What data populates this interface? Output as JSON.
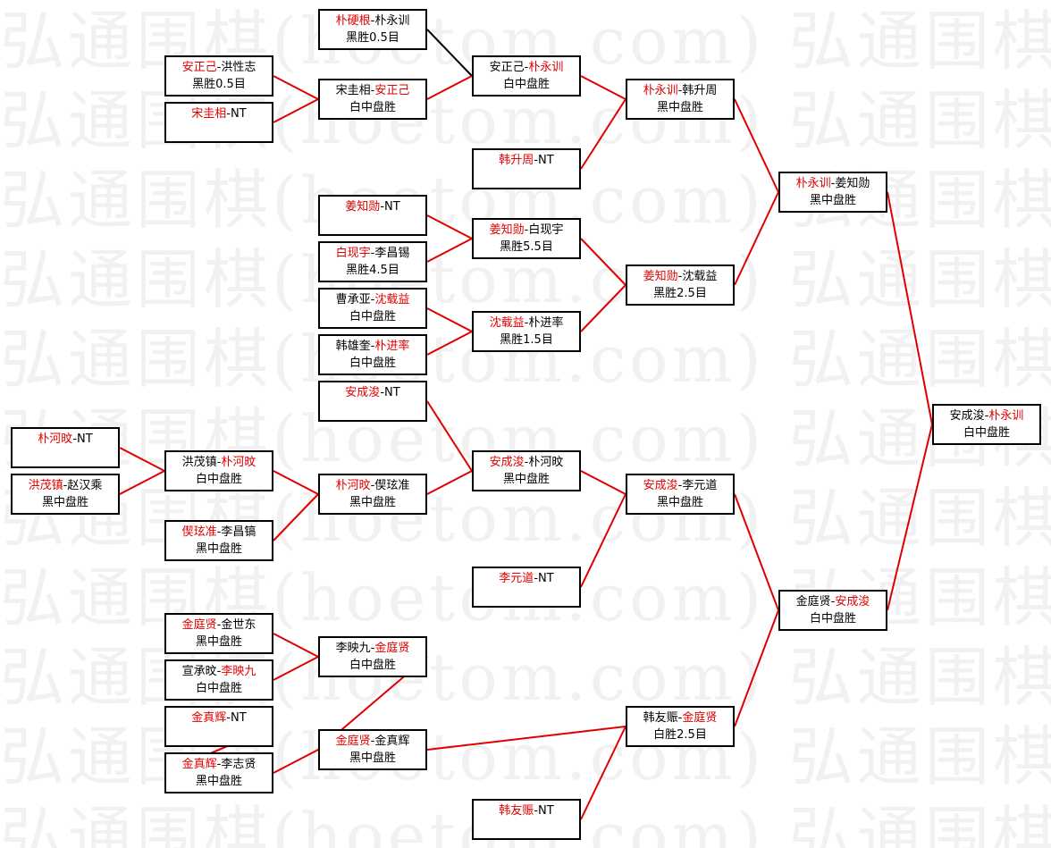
{
  "watermark": "弘通围棋(hoetom.com) 弘通围棋(hoetom.com)",
  "colors": {
    "winner": "#e00000",
    "text": "#000000",
    "link_red": "#e00000",
    "link_black": "#000000",
    "watermark": "#f1f1f1"
  },
  "separator": "-",
  "matches": [
    {
      "id": "m0",
      "players": [
        "朴硬根",
        "朴永训"
      ],
      "winner": 0,
      "result": "黑胜0.5目",
      "next": "m4",
      "link": "black"
    },
    {
      "id": "m1",
      "players": [
        "安正己",
        "洪性志"
      ],
      "winner": 0,
      "result": "黑胜0.5目",
      "next": "m3",
      "link": "red"
    },
    {
      "id": "m2",
      "players": [
        "宋圭相",
        "NT"
      ],
      "winner": 0,
      "result": "",
      "next": "m3",
      "link": "red"
    },
    {
      "id": "m3",
      "players": [
        "宋圭相",
        "安正己"
      ],
      "winner": 1,
      "result": "白中盘胜",
      "next": "m4",
      "link": "red"
    },
    {
      "id": "m4",
      "players": [
        "安正己",
        "朴永训"
      ],
      "winner": 1,
      "result": "白中盘胜",
      "next": "m6",
      "link": "red"
    },
    {
      "id": "m5",
      "players": [
        "韩升周",
        "NT"
      ],
      "winner": 0,
      "result": "",
      "next": "m6",
      "link": "red"
    },
    {
      "id": "m6",
      "players": [
        "朴永训",
        "韩升周"
      ],
      "winner": 0,
      "result": "黑中盘胜",
      "next": "m14",
      "link": "red"
    },
    {
      "id": "m7",
      "players": [
        "姜知勋",
        "NT"
      ],
      "winner": 0,
      "result": "",
      "next": "m9",
      "link": "red"
    },
    {
      "id": "m8",
      "players": [
        "白现宇",
        "李昌锡"
      ],
      "winner": 0,
      "result": "黑胜4.5目",
      "next": "m9",
      "link": "red"
    },
    {
      "id": "m9",
      "players": [
        "姜知勋",
        "白现宇"
      ],
      "winner": 0,
      "result": "黑胜5.5目",
      "next": "m13",
      "link": "red"
    },
    {
      "id": "m10",
      "players": [
        "曹承亚",
        "沈载益"
      ],
      "winner": 1,
      "result": "白中盘胜",
      "next": "m12",
      "link": "red"
    },
    {
      "id": "m11",
      "players": [
        "韩雄奎",
        "朴进率"
      ],
      "winner": 1,
      "result": "白中盘胜",
      "next": "m12",
      "link": "red"
    },
    {
      "id": "m12",
      "players": [
        "沈载益",
        "朴进率"
      ],
      "winner": 0,
      "result": "黑胜1.5目",
      "next": "m13",
      "link": "red"
    },
    {
      "id": "m13",
      "players": [
        "姜知勋",
        "沈载益"
      ],
      "winner": 0,
      "result": "黑胜2.5目",
      "next": "m14",
      "link": "red"
    },
    {
      "id": "m14",
      "players": [
        "朴永训",
        "姜知勋"
      ],
      "winner": 0,
      "result": "黑中盘胜",
      "next": "m33",
      "link": "red"
    },
    {
      "id": "m15",
      "players": [
        "安成浚",
        "NT"
      ],
      "winner": 0,
      "result": "",
      "next": "m21",
      "link": "red"
    },
    {
      "id": "m16",
      "players": [
        "朴河旼",
        "NT"
      ],
      "winner": 0,
      "result": "",
      "next": "m18",
      "link": "red"
    },
    {
      "id": "m17",
      "players": [
        "洪茂镇",
        "赵汉乘"
      ],
      "winner": 0,
      "result": "黑中盘胜",
      "next": "m18",
      "link": "red"
    },
    {
      "id": "m18",
      "players": [
        "洪茂镇",
        "朴河旼"
      ],
      "winner": 1,
      "result": "白中盘胜",
      "next": "m20",
      "link": "red"
    },
    {
      "id": "m19",
      "players": [
        "偰玹准",
        "李昌镐"
      ],
      "winner": 0,
      "result": "黑中盘胜",
      "next": "m20",
      "link": "red"
    },
    {
      "id": "m20",
      "players": [
        "朴河旼",
        "偰玹准"
      ],
      "winner": 0,
      "result": "黑中盘胜",
      "next": "m21",
      "link": "red"
    },
    {
      "id": "m21",
      "players": [
        "安成浚",
        "朴河旼"
      ],
      "winner": 0,
      "result": "黑中盘胜",
      "next": "m23",
      "link": "red"
    },
    {
      "id": "m22",
      "players": [
        "李元道",
        "NT"
      ],
      "winner": 0,
      "result": "",
      "next": "m23",
      "link": "red"
    },
    {
      "id": "m23",
      "players": [
        "安成浚",
        "李元道"
      ],
      "winner": 0,
      "result": "黑中盘胜",
      "next": "m32",
      "link": "red"
    },
    {
      "id": "m24",
      "players": [
        "金庭贤",
        "金世东"
      ],
      "winner": 0,
      "result": "黑中盘胜",
      "next": "m26",
      "link": "red"
    },
    {
      "id": "m25",
      "players": [
        "宣承旼",
        "李映九"
      ],
      "winner": 1,
      "result": "白中盘胜",
      "next": "m26",
      "link": "red"
    },
    {
      "id": "m26",
      "players": [
        "李映九",
        "金庭贤"
      ],
      "winner": 1,
      "result": "白中盘胜",
      "next": "m29",
      "link": "red"
    },
    {
      "id": "m27",
      "players": [
        "金真辉",
        "NT"
      ],
      "winner": 0,
      "result": "",
      "next": "m28",
      "link": "red"
    },
    {
      "id": "m28",
      "players": [
        "金真辉",
        "李志贤"
      ],
      "winner": 0,
      "result": "黑中盘胜",
      "next": "m29",
      "link": "red"
    },
    {
      "id": "m29",
      "players": [
        "金庭贤",
        "金真辉"
      ],
      "winner": 0,
      "result": "黑中盘胜",
      "next": "m31",
      "link": "red"
    },
    {
      "id": "m30",
      "players": [
        "韩友赈",
        "NT"
      ],
      "winner": 0,
      "result": "",
      "next": "m31",
      "link": "red"
    },
    {
      "id": "m31",
      "players": [
        "韩友赈",
        "金庭贤"
      ],
      "winner": 1,
      "result": "白胜2.5目",
      "next": "m32",
      "link": "red"
    },
    {
      "id": "m32",
      "players": [
        "金庭贤",
        "安成浚"
      ],
      "winner": 1,
      "result": "白中盘胜",
      "next": "m33",
      "link": "red"
    },
    {
      "id": "m33",
      "players": [
        "安成浚",
        "朴永训"
      ],
      "winner": 1,
      "result": "白中盘胜",
      "next": null,
      "link": "red"
    }
  ]
}
